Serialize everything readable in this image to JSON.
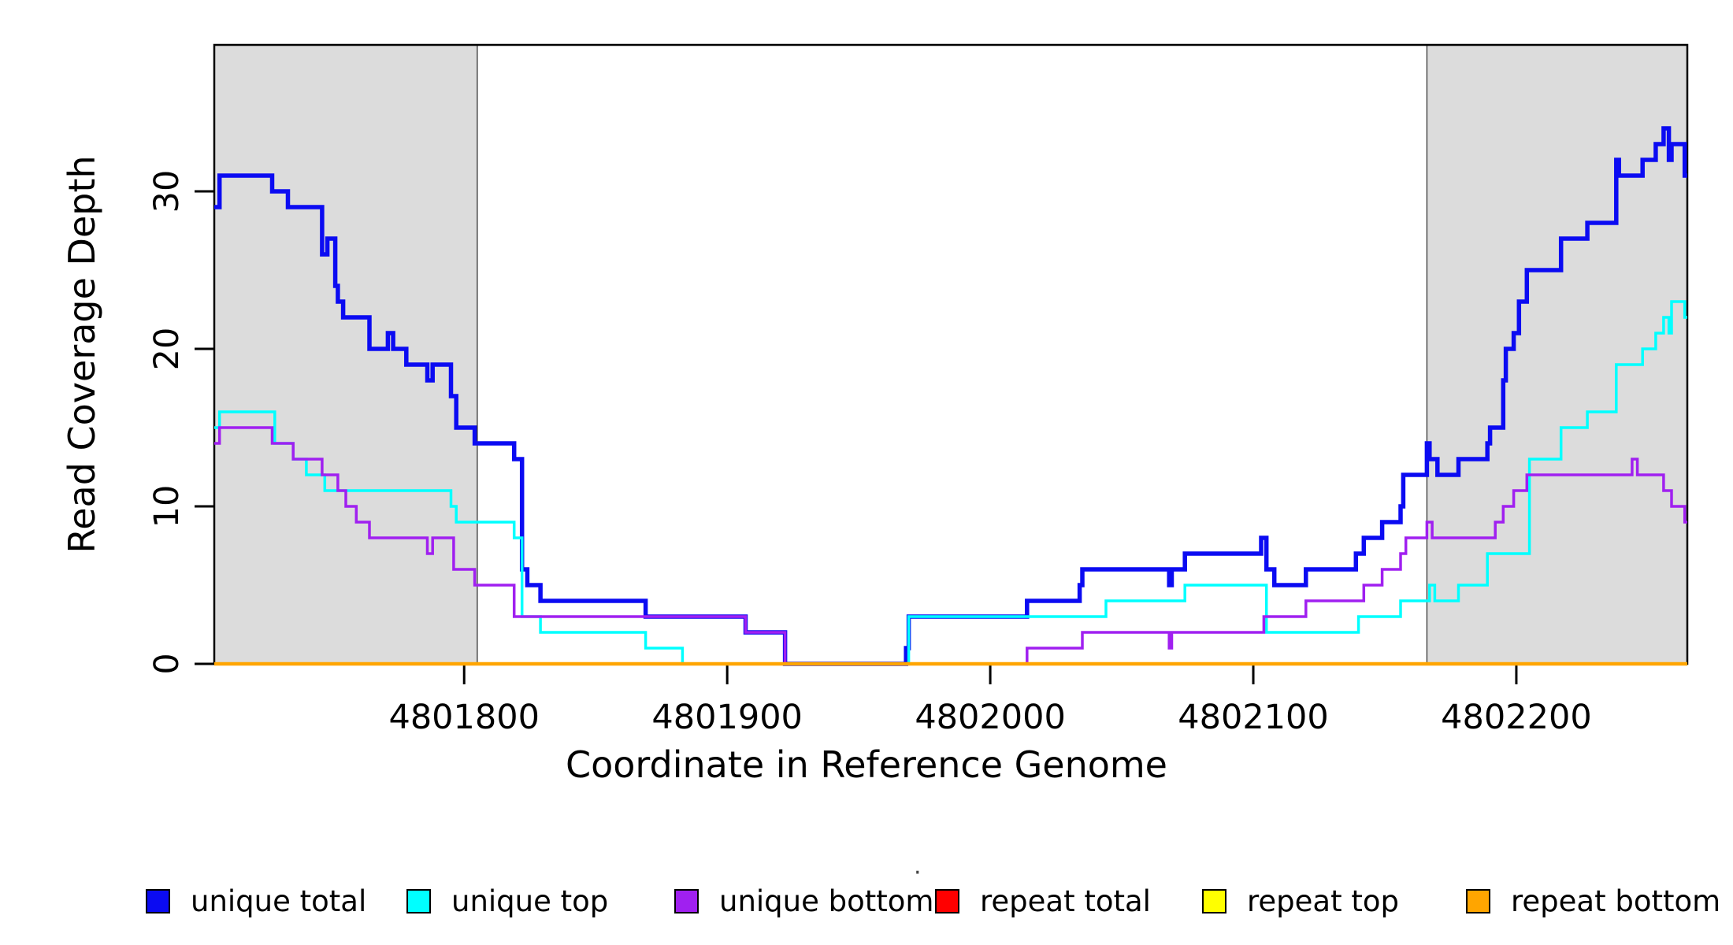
{
  "chart_data": {
    "type": "line",
    "subtype": "step",
    "title": "",
    "xlabel": "Coordinate in Reference Genome",
    "ylabel": "Read Coverage Depth",
    "xlim": [
      4801705,
      4802265
    ],
    "ylim": [
      0,
      39.3
    ],
    "x_ticks": [
      4801800,
      4801900,
      4802000,
      4802100,
      4802200
    ],
    "y_ticks": [
      0,
      10,
      20,
      30
    ],
    "grid": false,
    "legend_position": "bottom",
    "background": "#ffffff",
    "box_color": "#000000",
    "shaded_regions": [
      {
        "from": 4801705,
        "to": 4801805,
        "color": "#DCDCDC"
      },
      {
        "from": 4802166,
        "to": 4802265,
        "color": "#DCDCDC"
      }
    ],
    "series": [
      {
        "name": "unique total",
        "color": "#0B0BF2",
        "width": 5.5,
        "points": [
          [
            4801705,
            29
          ],
          [
            4801707,
            31
          ],
          [
            4801727,
            30
          ],
          [
            4801733,
            29
          ],
          [
            4801746,
            26
          ],
          [
            4801748,
            27
          ],
          [
            4801751,
            24
          ],
          [
            4801752,
            23
          ],
          [
            4801754,
            22
          ],
          [
            4801764,
            20
          ],
          [
            4801771,
            21
          ],
          [
            4801773,
            20
          ],
          [
            4801778,
            19
          ],
          [
            4801786,
            18
          ],
          [
            4801788,
            19
          ],
          [
            4801795,
            17
          ],
          [
            4801797,
            15
          ],
          [
            4801804,
            14
          ],
          [
            4801819,
            13
          ],
          [
            4801822,
            6
          ],
          [
            4801824,
            5
          ],
          [
            4801829,
            4
          ],
          [
            4801869,
            3
          ],
          [
            4801907,
            2
          ],
          [
            4801922,
            0
          ],
          [
            4801968,
            1
          ],
          [
            4801969,
            3
          ],
          [
            4802014,
            4
          ],
          [
            4802034,
            5
          ],
          [
            4802035,
            6
          ],
          [
            4802068,
            5
          ],
          [
            4802069,
            6
          ],
          [
            4802074,
            7
          ],
          [
            4802103,
            8
          ],
          [
            4802105,
            6
          ],
          [
            4802108,
            5
          ],
          [
            4802120,
            6
          ],
          [
            4802139,
            7
          ],
          [
            4802142,
            8
          ],
          [
            4802149,
            9
          ],
          [
            4802156,
            10
          ],
          [
            4802157,
            12
          ],
          [
            4802166,
            14
          ],
          [
            4802167,
            13
          ],
          [
            4802170,
            12
          ],
          [
            4802178,
            13
          ],
          [
            4802189,
            14
          ],
          [
            4802190,
            15
          ],
          [
            4802195,
            18
          ],
          [
            4802196,
            20
          ],
          [
            4802199,
            21
          ],
          [
            4802201,
            23
          ],
          [
            4802204,
            25
          ],
          [
            4802217,
            27
          ],
          [
            4802227,
            28
          ],
          [
            4802238,
            32
          ],
          [
            4802239,
            31
          ],
          [
            4802248,
            32
          ],
          [
            4802253,
            33
          ],
          [
            4802256,
            34
          ],
          [
            4802258,
            32
          ],
          [
            4802259,
            33
          ],
          [
            4802264,
            31
          ]
        ]
      },
      {
        "name": "unique top",
        "color": "#00FFFF",
        "width": 3.5,
        "points": [
          [
            4801705,
            15
          ],
          [
            4801707,
            16
          ],
          [
            4801728,
            14
          ],
          [
            4801735,
            13
          ],
          [
            4801740,
            12
          ],
          [
            4801747,
            11
          ],
          [
            4801795,
            10
          ],
          [
            4801797,
            9
          ],
          [
            4801819,
            8
          ],
          [
            4801822,
            3
          ],
          [
            4801829,
            2
          ],
          [
            4801869,
            1
          ],
          [
            4801883,
            0
          ],
          [
            4801969,
            3
          ],
          [
            4802044,
            4
          ],
          [
            4802074,
            5
          ],
          [
            4802105,
            2
          ],
          [
            4802140,
            3
          ],
          [
            4802156,
            4
          ],
          [
            4802167,
            5
          ],
          [
            4802169,
            4
          ],
          [
            4802178,
            5
          ],
          [
            4802189,
            7
          ],
          [
            4802205,
            13
          ],
          [
            4802217,
            15
          ],
          [
            4802227,
            16
          ],
          [
            4802238,
            19
          ],
          [
            4802248,
            20
          ],
          [
            4802253,
            21
          ],
          [
            4802256,
            22
          ],
          [
            4802258,
            21
          ],
          [
            4802259,
            23
          ],
          [
            4802264,
            22
          ]
        ]
      },
      {
        "name": "unique bottom",
        "color": "#A020F0",
        "width": 3.5,
        "points": [
          [
            4801705,
            14
          ],
          [
            4801707,
            15
          ],
          [
            4801727,
            14
          ],
          [
            4801735,
            13
          ],
          [
            4801746,
            12
          ],
          [
            4801752,
            11
          ],
          [
            4801755,
            10
          ],
          [
            4801759,
            9
          ],
          [
            4801764,
            8
          ],
          [
            4801786,
            7
          ],
          [
            4801788,
            8
          ],
          [
            4801796,
            6
          ],
          [
            4801804,
            5
          ],
          [
            4801819,
            3
          ],
          [
            4801907,
            2
          ],
          [
            4801922,
            0
          ],
          [
            4802014,
            1
          ],
          [
            4802035,
            2
          ],
          [
            4802068,
            1
          ],
          [
            4802069,
            2
          ],
          [
            4802104,
            3
          ],
          [
            4802120,
            4
          ],
          [
            4802142,
            5
          ],
          [
            4802149,
            6
          ],
          [
            4802156,
            7
          ],
          [
            4802158,
            8
          ],
          [
            4802166,
            9
          ],
          [
            4802168,
            8
          ],
          [
            4802192,
            9
          ],
          [
            4802195,
            10
          ],
          [
            4802199,
            11
          ],
          [
            4802204,
            12
          ],
          [
            4802244,
            13
          ],
          [
            4802246,
            12
          ],
          [
            4802256,
            11
          ],
          [
            4802259,
            10
          ],
          [
            4802264,
            9
          ]
        ]
      },
      {
        "name": "repeat total",
        "color": "#FF0000",
        "width": 3.5,
        "points": [
          [
            4801705,
            0
          ]
        ]
      },
      {
        "name": "repeat top",
        "color": "#FFFF00",
        "width": 3.5,
        "points": [
          [
            4801705,
            0
          ]
        ]
      },
      {
        "name": "repeat bottom",
        "color": "#FFA500",
        "width": 4.5,
        "points": [
          [
            4801705,
            0
          ]
        ]
      }
    ]
  },
  "legend": {
    "items": [
      {
        "label": "unique total",
        "color": "#0B0BF2"
      },
      {
        "label": "unique top",
        "color": "#00FFFF"
      },
      {
        "label": "unique bottom",
        "color": "#A020F0"
      },
      {
        "label": "repeat total",
        "color": "#FF0000"
      },
      {
        "label": "repeat top",
        "color": "#FFFF00"
      },
      {
        "label": "repeat bottom",
        "color": "#FFA500"
      }
    ],
    "stray_mark": "·"
  }
}
